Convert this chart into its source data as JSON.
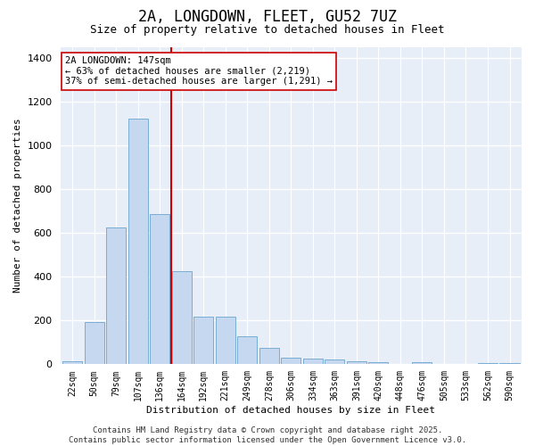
{
  "title_line1": "2A, LONGDOWN, FLEET, GU52 7UZ",
  "title_line2": "Size of property relative to detached houses in Fleet",
  "xlabel": "Distribution of detached houses by size in Fleet",
  "ylabel": "Number of detached properties",
  "categories": [
    "22sqm",
    "50sqm",
    "79sqm",
    "107sqm",
    "136sqm",
    "164sqm",
    "192sqm",
    "221sqm",
    "249sqm",
    "278sqm",
    "306sqm",
    "334sqm",
    "363sqm",
    "391sqm",
    "420sqm",
    "448sqm",
    "476sqm",
    "505sqm",
    "533sqm",
    "562sqm",
    "590sqm"
  ],
  "values": [
    12,
    190,
    625,
    1120,
    685,
    425,
    215,
    215,
    125,
    75,
    27,
    25,
    20,
    10,
    8,
    0,
    8,
    0,
    0,
    5,
    5
  ],
  "bar_color": "#c5d8f0",
  "bar_edge_color": "#7aadd4",
  "bg_color": "#e8eef8",
  "grid_color": "#ffffff",
  "vline_x_idx": 5,
  "vline_color": "#cc0000",
  "annotation_text": "2A LONGDOWN: 147sqm\n← 63% of detached houses are smaller (2,219)\n37% of semi-detached houses are larger (1,291) →",
  "annotation_box_color": "#ffffff",
  "annotation_box_edge": "#cc0000",
  "footer_line1": "Contains HM Land Registry data © Crown copyright and database right 2025.",
  "footer_line2": "Contains public sector information licensed under the Open Government Licence v3.0.",
  "ylim": [
    0,
    1450
  ],
  "yticks": [
    0,
    200,
    400,
    600,
    800,
    1000,
    1200,
    1400
  ],
  "title_fontsize": 12,
  "subtitle_fontsize": 9,
  "axis_label_fontsize": 8,
  "tick_fontsize": 7,
  "footer_fontsize": 6.5,
  "ann_fontsize": 7.5
}
